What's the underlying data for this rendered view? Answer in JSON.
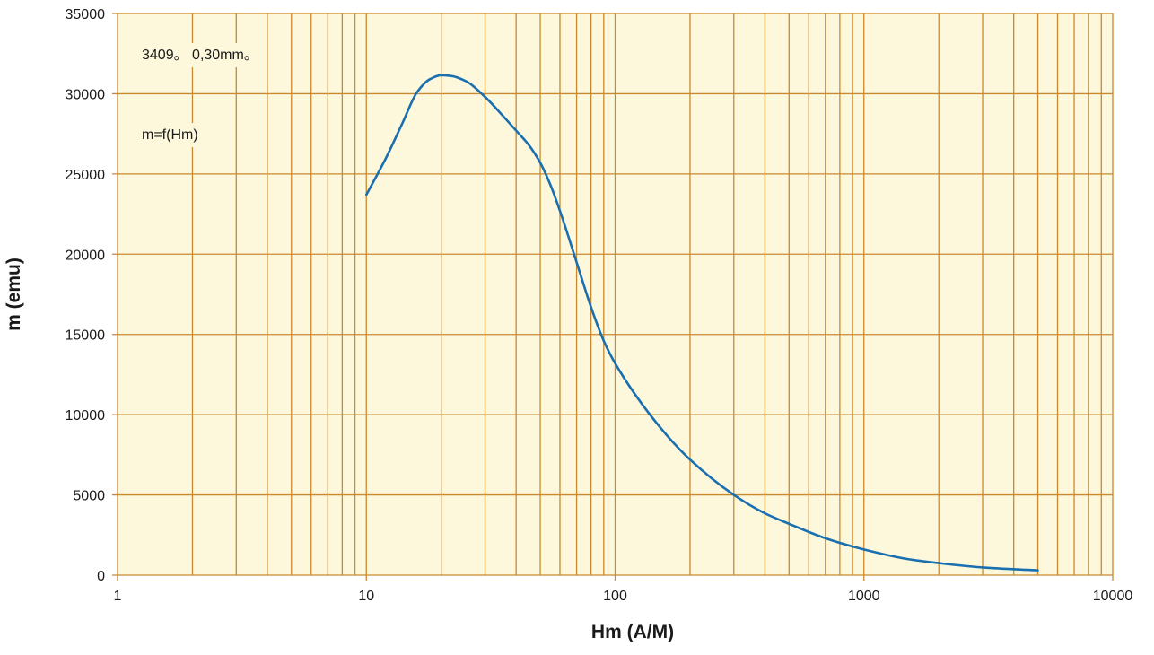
{
  "chart_data": {
    "type": "line",
    "xscale": "log",
    "xlim": [
      1,
      10000
    ],
    "ylim": [
      0,
      35000
    ],
    "grid": true,
    "xlabel": "Hm (A/M)",
    "ylabel": "m (emu)",
    "xticks": [
      "1",
      "10",
      "100",
      "1000",
      "10000"
    ],
    "yticks": [
      "0",
      "5000",
      "10000",
      "15000",
      "20000",
      "25000",
      "30000",
      "35000"
    ],
    "annotations": [
      "3409。 0,30mm。",
      "m=f(Hm)"
    ],
    "series": [
      {
        "x": [
          10,
          12,
          14,
          16,
          18,
          20,
          22,
          25,
          30,
          35,
          40,
          45,
          50,
          55,
          60,
          70,
          80,
          90,
          100,
          150,
          200,
          300,
          400,
          500,
          700,
          1000,
          1500,
          2000,
          3000,
          5000
        ],
        "y": [
          23700,
          26000,
          28200,
          30100,
          30900,
          31150,
          31100,
          30800,
          29800,
          28700,
          27700,
          26800,
          25700,
          24300,
          22700,
          19500,
          16700,
          14600,
          13200,
          9300,
          7200,
          5000,
          3850,
          3200,
          2300,
          1600,
          1000,
          750,
          480,
          300
        ]
      }
    ],
    "colors": {
      "plot_background": "#fdf8dc",
      "grid": "#c9892f",
      "line": "#1a6fb0"
    }
  }
}
